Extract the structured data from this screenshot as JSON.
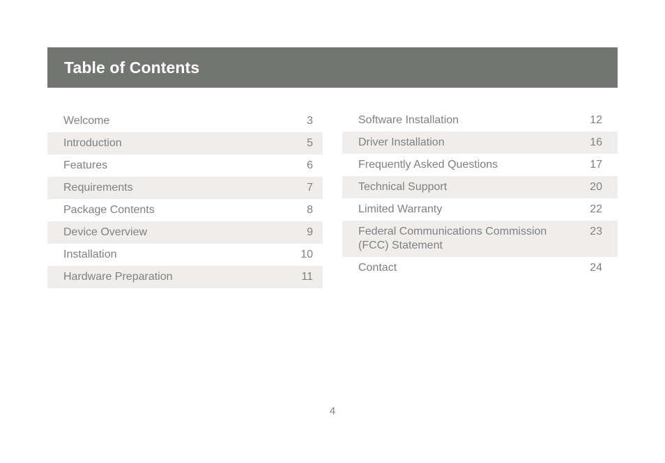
{
  "header": {
    "title": "Table of Contents"
  },
  "toc": {
    "left": [
      {
        "title": "Welcome",
        "page": "3"
      },
      {
        "title": "Introduction",
        "page": "5"
      },
      {
        "title": "Features",
        "page": "6"
      },
      {
        "title": "Requirements",
        "page": "7"
      },
      {
        "title": "Package Contents",
        "page": "8"
      },
      {
        "title": "Device Overview",
        "page": "9"
      },
      {
        "title": "Installation",
        "page": "10"
      },
      {
        "title": "Hardware Preparation",
        "page": "11"
      }
    ],
    "right": [
      {
        "title": "Software Installation",
        "page": "12"
      },
      {
        "title": "Driver Installation",
        "page": "16"
      },
      {
        "title": "Frequently Asked Questions",
        "page": "17"
      },
      {
        "title": "Technical Support",
        "page": "20"
      },
      {
        "title": "Limited Warranty",
        "page": "22"
      },
      {
        "title": "Federal Communications Commission (FCC) Statement",
        "page": "23"
      },
      {
        "title": "Contact",
        "page": "24"
      }
    ]
  },
  "footer": {
    "page_number": "4"
  },
  "colors": {
    "header_bg": "#737572",
    "row_shade": "#efeeed",
    "text": "#808080"
  }
}
